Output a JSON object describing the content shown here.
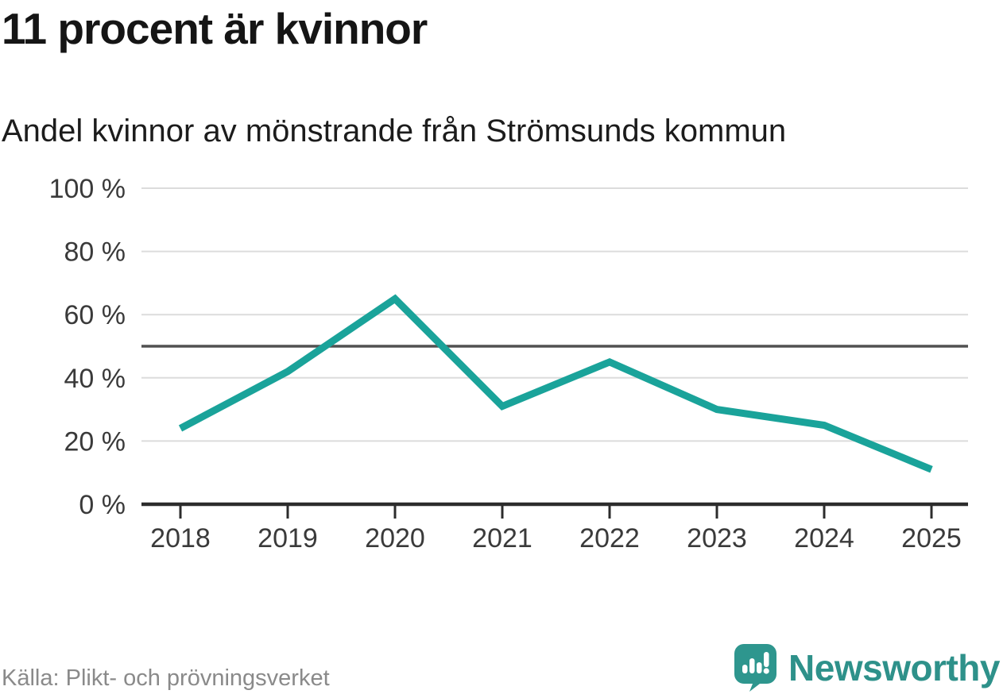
{
  "header": {
    "title": "11 procent är kvinnor",
    "subtitle": "Andel kvinnor av mönstrande från Strömsunds kommun"
  },
  "footer": {
    "source": "Källa: Plikt- och prövningsverket",
    "brand": "Newsworthy"
  },
  "colors": {
    "line": "#1aa39a",
    "grid": "#dcdcdc",
    "reference_line": "#515151",
    "axis": "#2c2c2c",
    "tick_label": "#3a3a3a",
    "source_text": "#8a8a8a",
    "brand_teal": "#2e918a"
  },
  "chart_data": {
    "type": "line",
    "title": "11 procent är kvinnor",
    "subtitle": "Andel kvinnor av mönstrande från Strömsunds kommun",
    "series_name": "Andel kvinnor av mönstrande från Strömsunds kommun",
    "x": [
      2018,
      2019,
      2020,
      2021,
      2022,
      2023,
      2024,
      2025
    ],
    "values": [
      24,
      42,
      65,
      31,
      45,
      30,
      25,
      11
    ],
    "unit": "%",
    "ylim": [
      0,
      100
    ],
    "yticks": [
      0,
      20,
      40,
      60,
      80,
      100
    ],
    "ytick_format": "{v} %",
    "reference_line": 50,
    "grid": "horizontal",
    "legend": "none",
    "source": "Källa: Plikt- och prövningsverket"
  }
}
